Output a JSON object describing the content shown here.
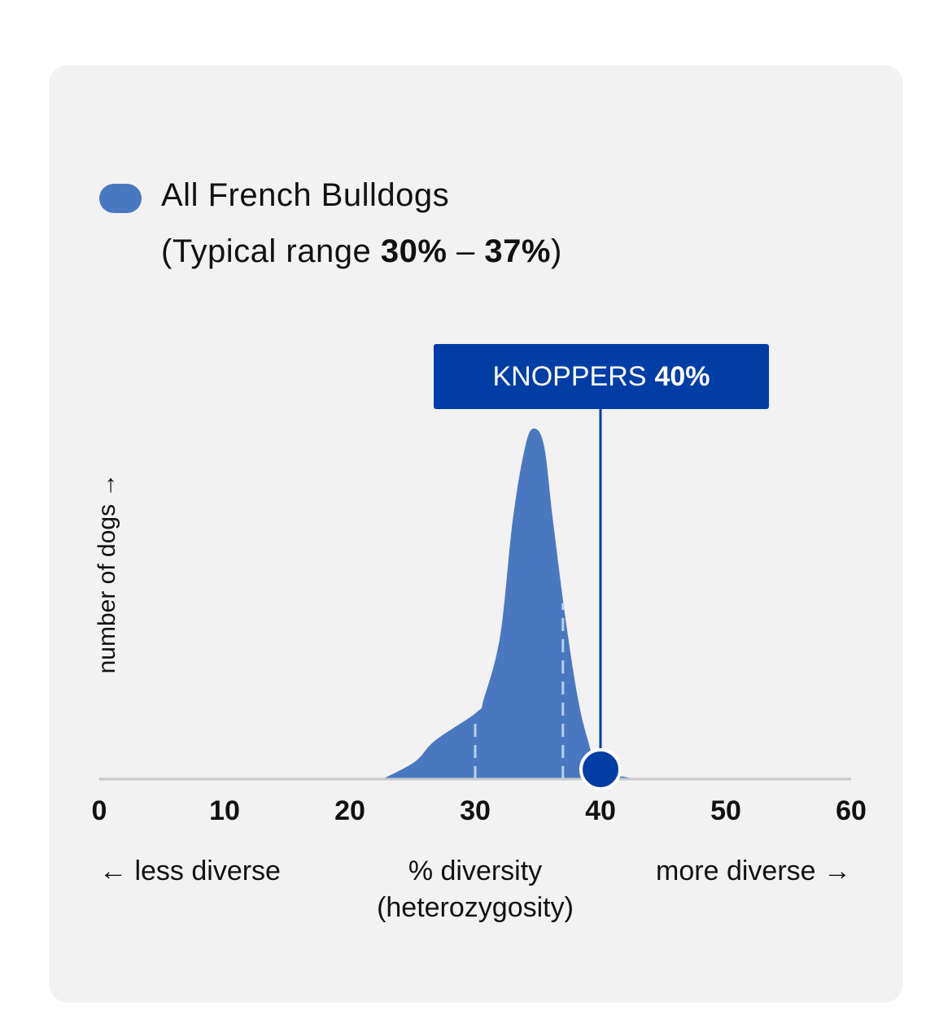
{
  "legend": {
    "label": "All French Bulldogs",
    "range_prefix": "(Typical range",
    "range_low": "30%",
    "range_sep": "–",
    "range_high": "37%",
    "range_suffix": ")"
  },
  "marker": {
    "name": "KNOPPERS",
    "value_label": "40%",
    "value": 40
  },
  "colors": {
    "distribution": "#4a78c0",
    "marker": "#003da5",
    "axis": "#c8c8c8",
    "card": "#f2f2f2"
  },
  "chart_data": {
    "type": "area",
    "title": "All French Bulldogs",
    "xlabel": "% diversity (heterozygosity)",
    "ylabel": "number of dogs →",
    "xlim": [
      0,
      60
    ],
    "ylim": [
      0,
      1
    ],
    "xticks": [
      "0",
      "10",
      "20",
      "30",
      "40",
      "50",
      "60"
    ],
    "typical_range": [
      30,
      37
    ],
    "series": [
      {
        "name": "All French Bulldogs",
        "x": [
          22.6,
          25.2,
          26.8,
          30.1,
          30.7,
          32.0,
          33.0,
          34.0,
          34.7,
          35.5,
          36.2,
          37.2,
          38.2,
          39.0,
          39.8,
          41.4,
          43.1
        ],
        "y": [
          0,
          0.05,
          0.11,
          0.19,
          0.23,
          0.41,
          0.74,
          0.95,
          1.0,
          0.95,
          0.74,
          0.46,
          0.23,
          0.11,
          0.03,
          0.01,
          0
        ]
      }
    ]
  },
  "captions": {
    "left": "← less diverse",
    "center_1": "% diversity",
    "center_2": "(heterozygosity)",
    "right": "more diverse →"
  }
}
